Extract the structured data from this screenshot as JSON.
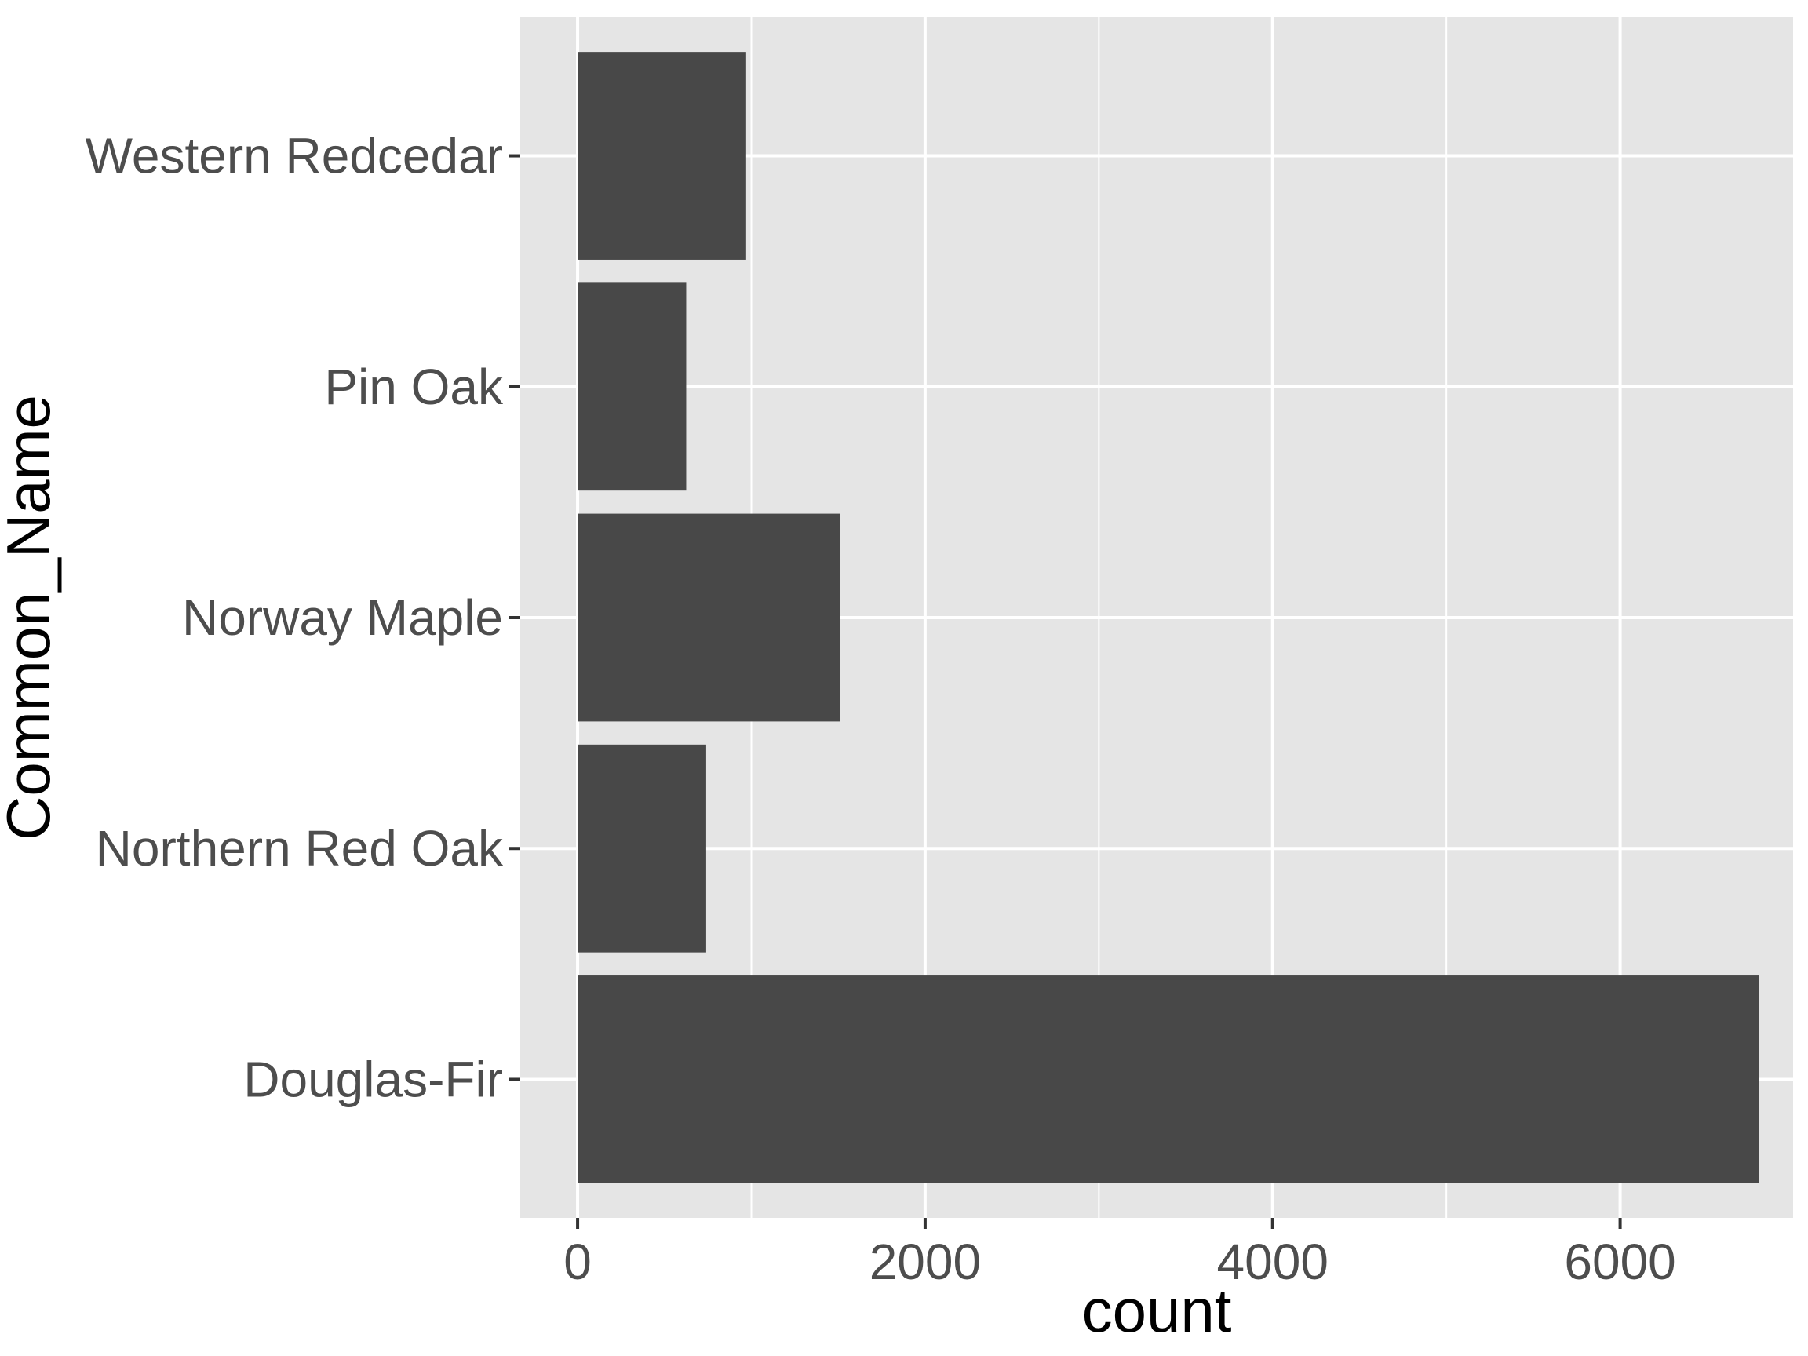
{
  "chart_data": {
    "type": "bar",
    "orientation": "horizontal",
    "categories": [
      "Douglas-Fir",
      "Northern Red Oak",
      "Norway Maple",
      "Pin Oak",
      "Western Redcedar"
    ],
    "values": [
      6800,
      740,
      1510,
      625,
      970
    ],
    "xlabel": "count",
    "ylabel": "Common_Name",
    "xlim": [
      -330,
      7000
    ],
    "x_ticks": [
      "0",
      "2000",
      "4000",
      "6000"
    ],
    "grid": true,
    "colors": {
      "panel_background": "#e5e5e5",
      "grid_line": "#ffffff",
      "bar_fill": "#484848",
      "tick_label": "#4d4d4d",
      "axis_tick": "#333333",
      "axis_title": "#000000"
    }
  }
}
